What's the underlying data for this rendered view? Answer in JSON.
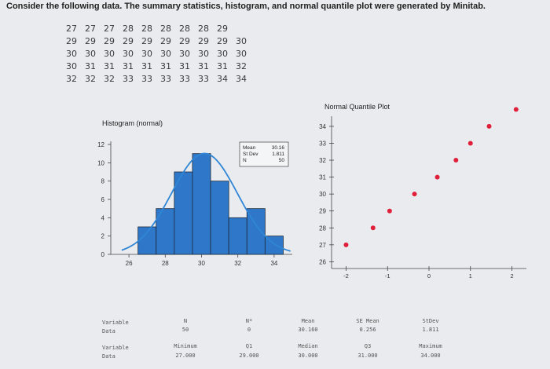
{
  "question": "Consider the following data. The summary statistics, histogram, and normal quantile plot were generated by Minitab.",
  "data_rows": [
    [
      "27",
      "27",
      "27",
      "28",
      "28",
      "28",
      "28",
      "28",
      "29"
    ],
    [
      "29",
      "29",
      "29",
      "29",
      "29",
      "29",
      "29",
      "29",
      "29",
      "30"
    ],
    [
      "30",
      "30",
      "30",
      "30",
      "30",
      "30",
      "30",
      "30",
      "30",
      "30"
    ],
    [
      "30",
      "31",
      "31",
      "31",
      "31",
      "31",
      "31",
      "31",
      "31",
      "32"
    ],
    [
      "32",
      "32",
      "32",
      "33",
      "33",
      "33",
      "33",
      "33",
      "34",
      "34"
    ]
  ],
  "chart_data": [
    {
      "type": "bar",
      "title": "Histogram (normal)",
      "x_ticks": [
        "26",
        "28",
        "30",
        "32",
        "34"
      ],
      "y_ticks": [
        "0",
        "2",
        "4",
        "6",
        "8",
        "10",
        "12"
      ],
      "xlim": [
        25,
        35
      ],
      "ylim": [
        0,
        12
      ],
      "bins": [
        {
          "x": 27,
          "count": 3
        },
        {
          "x": 28,
          "count": 5
        },
        {
          "x": 29,
          "count": 9
        },
        {
          "x": 30,
          "count": 11
        },
        {
          "x": 31,
          "count": 8
        },
        {
          "x": 32,
          "count": 4
        },
        {
          "x": 33,
          "count": 5
        },
        {
          "x": 34,
          "count": 2
        }
      ],
      "bin_width": 1,
      "normal_curve": {
        "mean": 30.16,
        "sd": 1.811,
        "n": 50
      },
      "legend_box": {
        "rows": [
          {
            "label": "Mean",
            "value": "30.16"
          },
          {
            "label": "St Dev",
            "value": "1.811"
          },
          {
            "label": "N",
            "value": "50"
          }
        ]
      },
      "colors": {
        "bar": "#2f77c9",
        "curve": "#2f86d6",
        "outline": "#1d2a3a"
      }
    },
    {
      "type": "scatter",
      "title": "Normal Quantile Plot",
      "x_ticks": [
        "-2",
        "-1",
        "0",
        "1",
        "2"
      ],
      "y_ticks": [
        "26",
        "27",
        "28",
        "29",
        "30",
        "31",
        "32",
        "33",
        "34"
      ],
      "xlim": [
        -2.35,
        2.35
      ],
      "ylim": [
        25.6,
        34.6
      ],
      "points": [
        {
          "x": -2.0,
          "y": 27
        },
        {
          "x": -1.35,
          "y": 28
        },
        {
          "x": -0.95,
          "y": 29
        },
        {
          "x": -0.35,
          "y": 30
        },
        {
          "x": 0.2,
          "y": 31
        },
        {
          "x": 0.65,
          "y": 32
        },
        {
          "x": 1.0,
          "y": 33
        },
        {
          "x": 1.45,
          "y": 34
        },
        {
          "x": 2.1,
          "y": 35
        }
      ],
      "colors": {
        "point": "#e0203b"
      }
    }
  ],
  "stats_table": {
    "row1": {
      "label_var": "Variable",
      "label_data": "Data",
      "headers": [
        "N",
        "N*",
        "Mean",
        "SE Mean",
        "StDev"
      ],
      "values": [
        "50",
        "0",
        "30.160",
        "0.256",
        "1.811"
      ]
    },
    "row2": {
      "label_var": "Variable",
      "label_data": "Data",
      "headers": [
        "Minimum",
        "Q1",
        "Median",
        "Q3",
        "Maximum"
      ],
      "values": [
        "27.000",
        "29.000",
        "30.000",
        "31.000",
        "34.000"
      ]
    }
  }
}
